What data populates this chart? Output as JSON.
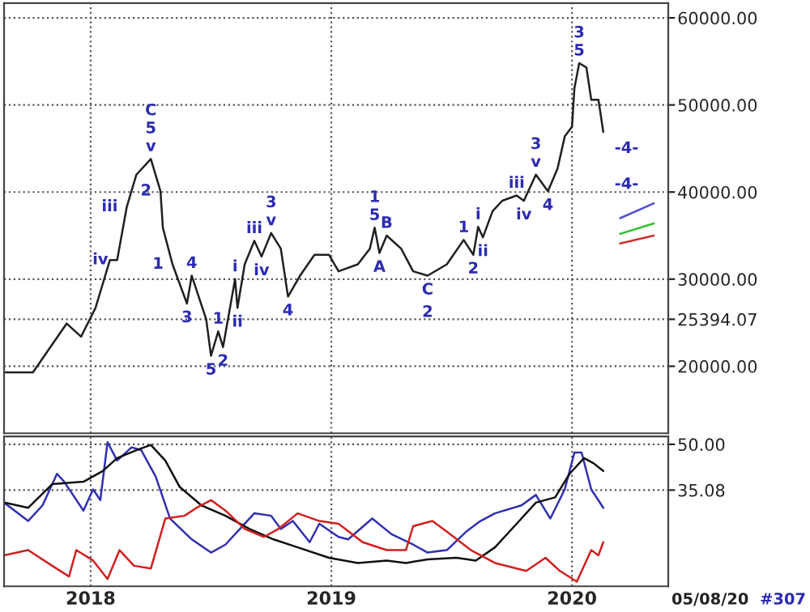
{
  "chart_data": [
    {
      "type": "line",
      "xlim": [
        2017.64,
        2020.4
      ],
      "ylim": [
        12300,
        61700
      ],
      "xticks": [
        2018,
        2019,
        2020
      ],
      "yticks": [
        {
          "value": 20000,
          "label": "20000.00"
        },
        {
          "value": 25394.07,
          "label": "25394.07"
        },
        {
          "value": 30000,
          "label": "30000.00"
        },
        {
          "value": 40000,
          "label": "40000.00"
        },
        {
          "value": 50000,
          "label": "50000.00"
        },
        {
          "value": 60000,
          "label": "60000.00"
        }
      ],
      "tick_labels": "y",
      "grid": true,
      "legend": false,
      "series": [
        {
          "color": "#202020",
          "x": [
            2017.64,
            2017.76,
            2017.9,
            2017.96,
            2018.02,
            2018.08,
            2018.11,
            2018.15,
            2018.19,
            2018.25,
            2018.29,
            2018.3,
            2018.34,
            2018.4,
            2018.42,
            2018.48,
            2018.5,
            2018.53,
            2018.55,
            2018.6,
            2018.61,
            2018.64,
            2018.68,
            2018.71,
            2018.75,
            2018.79,
            2018.82,
            2018.87,
            2018.93,
            2018.99,
            2019.03,
            2019.11,
            2019.16,
            2019.18,
            2019.2,
            2019.23,
            2019.29,
            2019.34,
            2019.4,
            2019.48,
            2019.55,
            2019.59,
            2019.61,
            2019.63,
            2019.67,
            2019.71,
            2019.77,
            2019.8,
            2019.85,
            2019.9,
            2019.94,
            2019.97,
            2020.0,
            2020.01,
            2020.03,
            2020.06,
            2020.08,
            2020.11,
            2020.13
          ],
          "values": [
            19300,
            19300,
            24900,
            23400,
            26700,
            32200,
            32200,
            38300,
            42000,
            43800,
            40100,
            35900,
            31700,
            27200,
            30400,
            25400,
            21200,
            24000,
            22200,
            30000,
            26700,
            31700,
            34400,
            32600,
            35300,
            33500,
            28000,
            30400,
            32800,
            32800,
            30900,
            31700,
            33500,
            35900,
            33000,
            35000,
            33500,
            30900,
            30400,
            31700,
            34500,
            32800,
            36000,
            34800,
            37800,
            39000,
            39600,
            39000,
            42000,
            40100,
            42700,
            46400,
            47500,
            51900,
            54800,
            54300,
            50600,
            50600,
            46900
          ]
        },
        {
          "color": "#5050d0",
          "x": [
            2020.2,
            2020.34
          ],
          "values": [
            37000,
            38700
          ]
        },
        {
          "color": "#30c030",
          "x": [
            2020.2,
            2020.34
          ],
          "values": [
            35200,
            36400
          ]
        },
        {
          "color": "#d03030",
          "x": [
            2020.2,
            2020.34
          ],
          "values": [
            34100,
            35000
          ]
        }
      ],
      "annotations": [
        {
          "text": "C",
          "x": 2018.25,
          "y": 43800
        },
        {
          "text": "5",
          "x": 2018.25,
          "y": 43800
        },
        {
          "text": "v",
          "x": 2018.25,
          "y": 43800
        },
        {
          "text": "2",
          "x": 2018.29,
          "y": 40100
        },
        {
          "text": "1",
          "x": 2018.34,
          "y": 31700
        },
        {
          "text": "4",
          "x": 2018.42,
          "y": 30400
        },
        {
          "text": "3",
          "x": 2018.4,
          "y": 27200
        },
        {
          "text": "5",
          "x": 2018.5,
          "y": 21200
        },
        {
          "text": "iii",
          "x": 2018.15,
          "y": 38300
        },
        {
          "text": "iv",
          "x": 2018.11,
          "y": 32200
        },
        {
          "text": "1",
          "x": 2018.53,
          "y": 24000
        },
        {
          "text": "2",
          "x": 2018.55,
          "y": 22200
        },
        {
          "text": "i",
          "x": 2018.6,
          "y": 30000
        },
        {
          "text": "ii",
          "x": 2018.61,
          "y": 26700
        },
        {
          "text": "iii",
          "x": 2018.68,
          "y": 34400
        },
        {
          "text": "iv",
          "x": 2018.71,
          "y": 32600
        },
        {
          "text": "3",
          "x": 2018.75,
          "y": 35300
        },
        {
          "text": "v",
          "x": 2018.75,
          "y": 35300
        },
        {
          "text": "4",
          "x": 2018.82,
          "y": 28000
        },
        {
          "text": "1",
          "x": 2019.18,
          "y": 35900
        },
        {
          "text": "5",
          "x": 2019.18,
          "y": 35900
        },
        {
          "text": "B",
          "x": 2019.23,
          "y": 35000
        },
        {
          "text": "A",
          "x": 2019.2,
          "y": 33000
        },
        {
          "text": "C",
          "x": 2019.4,
          "y": 30400
        },
        {
          "text": "2",
          "x": 2019.4,
          "y": 30400
        },
        {
          "text": "1",
          "x": 2019.55,
          "y": 34500
        },
        {
          "text": "2",
          "x": 2019.59,
          "y": 32800
        },
        {
          "text": "i",
          "x": 2019.61,
          "y": 36000
        },
        {
          "text": "ii",
          "x": 2019.63,
          "y": 34800
        },
        {
          "text": "iii",
          "x": 2019.77,
          "y": 39600
        },
        {
          "text": "iv",
          "x": 2019.8,
          "y": 39000
        },
        {
          "text": "3",
          "x": 2019.85,
          "y": 42000
        },
        {
          "text": "v",
          "x": 2019.85,
          "y": 42000
        },
        {
          "text": "4",
          "x": 2019.9,
          "y": 40100
        },
        {
          "text": "3",
          "x": 2020.03,
          "y": 54800
        },
        {
          "text": "5",
          "x": 2020.03,
          "y": 54800
        },
        {
          "text": "-4-",
          "x": 2020.13,
          "y": 46900
        },
        {
          "text": "-4-",
          "x": 2020.13,
          "y": 46900
        }
      ]
    },
    {
      "type": "line",
      "xlim": [
        2017.64,
        2020.4
      ],
      "ylim": [
        3.7,
        52.6
      ],
      "xticks": [
        2018,
        2019,
        2020
      ],
      "yticks": [
        {
          "value": 35.08,
          "label": "35.08"
        },
        {
          "value": 50,
          "label": "50.00"
        }
      ],
      "grid": true,
      "legend": false,
      "series": [
        {
          "color": "#3030b0",
          "x": [
            2017.64,
            2017.74,
            2017.8,
            2017.86,
            2017.89,
            2017.97,
            2018.01,
            2018.04,
            2018.07,
            2018.11,
            2018.17,
            2018.21,
            2018.27,
            2018.33,
            2018.42,
            2018.5,
            2018.56,
            2018.62,
            2018.68,
            2018.75,
            2018.79,
            2018.84,
            2018.91,
            2018.95,
            2019.03,
            2019.07,
            2019.17,
            2019.25,
            2019.34,
            2019.4,
            2019.48,
            2019.56,
            2019.62,
            2019.68,
            2019.79,
            2019.85,
            2019.91,
            2019.97,
            2020.01,
            2020.04,
            2020.08,
            2020.13
          ],
          "values": [
            31.0,
            25.0,
            30.1,
            40.4,
            37.8,
            28.4,
            35.3,
            31.8,
            50.7,
            44.7,
            49.0,
            48.1,
            39.5,
            25.8,
            19.0,
            14.7,
            17.3,
            22.4,
            27.5,
            26.7,
            22.4,
            25.0,
            18.1,
            24.1,
            19.8,
            19.0,
            25.8,
            20.7,
            17.3,
            14.7,
            15.5,
            21.5,
            25.0,
            27.5,
            30.1,
            33.5,
            25.8,
            35.3,
            47.3,
            47.3,
            35.3,
            29.3
          ]
        },
        {
          "color": "#101010",
          "x": [
            2017.64,
            2017.74,
            2017.84,
            2017.97,
            2018.05,
            2018.11,
            2018.19,
            2018.25,
            2018.31,
            2018.37,
            2018.46,
            2018.56,
            2018.66,
            2018.76,
            2018.86,
            2018.99,
            2019.11,
            2019.23,
            2019.31,
            2019.4,
            2019.52,
            2019.6,
            2019.68,
            2019.77,
            2019.85,
            2019.93,
            2019.99,
            2020.05,
            2020.09,
            2020.13
          ],
          "values": [
            31.0,
            29.3,
            37.0,
            37.8,
            41.3,
            45.5,
            48.1,
            49.8,
            44.7,
            36.1,
            30.1,
            26.7,
            22.4,
            19.0,
            16.4,
            13.0,
            11.3,
            12.1,
            11.3,
            12.5,
            13.0,
            12.1,
            16.4,
            24.1,
            31.0,
            32.7,
            40.4,
            45.5,
            43.8,
            41.3
          ]
        },
        {
          "color": "#d02020",
          "x": [
            2017.64,
            2017.74,
            2017.84,
            2017.91,
            2017.94,
            2018.01,
            2018.07,
            2018.12,
            2018.18,
            2018.25,
            2018.31,
            2018.39,
            2018.44,
            2018.5,
            2018.56,
            2018.64,
            2018.72,
            2018.78,
            2018.86,
            2018.95,
            2019.03,
            2019.13,
            2019.23,
            2019.31,
            2019.34,
            2019.42,
            2019.48,
            2019.58,
            2019.68,
            2019.81,
            2019.89,
            2019.95,
            2020.02,
            2020.08,
            2020.11,
            2020.13
          ],
          "values": [
            13.8,
            15.5,
            10.4,
            6.9,
            15.5,
            12.1,
            6.1,
            15.5,
            10.4,
            9.5,
            25.8,
            26.7,
            29.3,
            31.8,
            28.4,
            22.4,
            19.8,
            22.4,
            27.5,
            25.0,
            24.1,
            18.1,
            15.5,
            15.5,
            23.3,
            25.0,
            21.5,
            15.5,
            11.3,
            8.7,
            13.0,
            8.7,
            5.2,
            15.5,
            13.8,
            18.1
          ]
        }
      ],
      "annotations": [
        "05/08/20",
        "#307"
      ]
    }
  ]
}
